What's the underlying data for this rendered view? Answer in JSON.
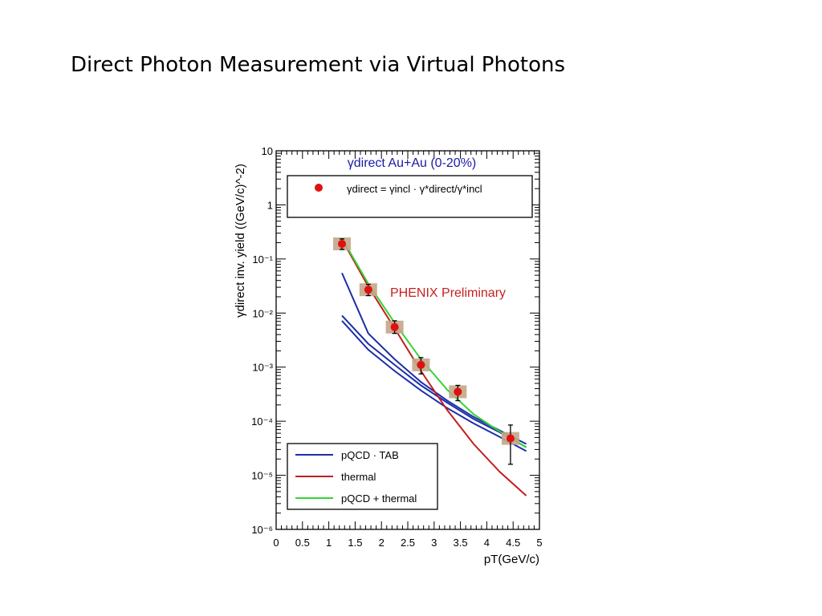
{
  "slide": {
    "title": "Direct Photon Measurement via Virtual Photons"
  },
  "chart_data": {
    "type": "scatter",
    "title": "γdirect Au+Au (0-20%)",
    "annotation": "PHENIX Preliminary",
    "formula_box": "γdirect = γincl · γ*direct/γ*incl",
    "xlabel": "pT(GeV/c)",
    "ylabel": "γdirect inv. yield ((GeV/c)^-2)",
    "xlim": [
      0,
      5
    ],
    "ylim": [
      1e-06,
      10
    ],
    "yscale": "log",
    "x_ticks": [
      "0",
      "0.5",
      "1",
      "1.5",
      "2",
      "2.5",
      "3",
      "3.5",
      "4",
      "4.5",
      "5"
    ],
    "y_ticks": [
      "10",
      "1",
      "10⁻¹",
      "10⁻²",
      "10⁻³",
      "10⁻⁴",
      "10⁻⁵",
      "10⁻⁶"
    ],
    "legend_position": "bottom-left",
    "data_points": {
      "name": "γdirect",
      "color": "#e01010",
      "x": [
        1.25,
        1.75,
        2.25,
        2.75,
        3.45,
        4.45
      ],
      "y": [
        0.19,
        0.027,
        0.0055,
        0.0011,
        0.00035,
        4.8e-05
      ],
      "y_err_low": [
        0.15,
        0.021,
        0.0042,
        0.00075,
        0.00024,
        1.6e-05
      ],
      "y_err_high": [
        0.235,
        0.034,
        0.0072,
        0.0015,
        0.00046,
        8.5e-05
      ]
    },
    "series": [
      {
        "name": "pQCD · TAB",
        "color": "#1c2fa8",
        "lines": [
          {
            "x": [
              1.25,
              1.75,
              2.25,
              2.75,
              3.25,
              3.75,
              4.25,
              4.75
            ],
            "y": [
              0.009,
              0.0027,
              0.0011,
              0.00046,
              0.00022,
              0.00011,
              6.2e-05,
              3.3e-05
            ]
          },
          {
            "x": [
              1.25,
              1.75,
              2.25,
              2.75,
              3.25,
              3.75,
              4.25,
              4.75
            ],
            "y": [
              0.0072,
              0.0021,
              0.00085,
              0.00037,
              0.000175,
              9.1e-05,
              5.1e-05,
              2.8e-05
            ]
          },
          {
            "x": [
              1.25,
              1.75,
              2.25,
              2.75,
              3.25,
              3.75,
              4.25,
              4.75
            ],
            "y": [
              0.055,
              0.0042,
              0.0014,
              0.00053,
              0.00024,
              0.00012,
              6.7e-05,
              3.8e-05
            ]
          }
        ]
      },
      {
        "name": "thermal",
        "color": "#c41e1e",
        "x": [
          1.25,
          1.75,
          2.25,
          2.75,
          3.25,
          3.75,
          4.25,
          4.75
        ],
        "y": [
          0.23,
          0.031,
          0.0052,
          0.00085,
          0.00016,
          3.8e-05,
          1.15e-05,
          4.2e-06
        ]
      },
      {
        "name": "pQCD + thermal",
        "color": "#33d633",
        "x": [
          1.25,
          1.75,
          2.25,
          2.75,
          3.25,
          3.75,
          4.25,
          4.75
        ],
        "y": [
          0.24,
          0.035,
          0.0066,
          0.0014,
          0.00038,
          0.000135,
          6.4e-05,
          3.3e-05
        ]
      }
    ],
    "legend": [
      "pQCD · TAB",
      "thermal",
      "pQCD + thermal"
    ]
  }
}
